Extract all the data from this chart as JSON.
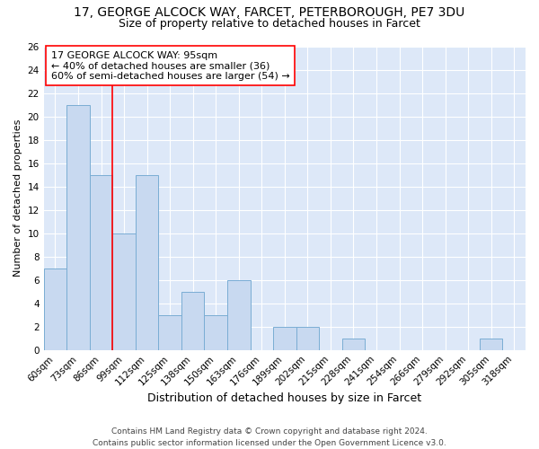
{
  "title1": "17, GEORGE ALCOCK WAY, FARCET, PETERBOROUGH, PE7 3DU",
  "title2": "Size of property relative to detached houses in Farcet",
  "xlabel": "Distribution of detached houses by size in Farcet",
  "ylabel": "Number of detached properties",
  "categories": [
    "60sqm",
    "73sqm",
    "86sqm",
    "99sqm",
    "112sqm",
    "125sqm",
    "138sqm",
    "150sqm",
    "163sqm",
    "176sqm",
    "189sqm",
    "202sqm",
    "215sqm",
    "228sqm",
    "241sqm",
    "254sqm",
    "266sqm",
    "279sqm",
    "292sqm",
    "305sqm",
    "318sqm"
  ],
  "values": [
    7,
    21,
    15,
    10,
    15,
    3,
    5,
    3,
    6,
    0,
    2,
    2,
    0,
    1,
    0,
    0,
    0,
    0,
    0,
    1,
    0
  ],
  "bar_color": "#c8d9f0",
  "bar_edge_color": "#7aadd4",
  "red_line_x": 3,
  "annotation_lines": [
    "17 GEORGE ALCOCK WAY: 95sqm",
    "← 40% of detached houses are smaller (36)",
    "60% of semi-detached houses are larger (54) →"
  ],
  "ylim": [
    0,
    26
  ],
  "yticks": [
    0,
    2,
    4,
    6,
    8,
    10,
    12,
    14,
    16,
    18,
    20,
    22,
    24,
    26
  ],
  "background_color": "#dde8f8",
  "grid_color": "#ffffff",
  "footer1": "Contains HM Land Registry data © Crown copyright and database right 2024.",
  "footer2": "Contains public sector information licensed under the Open Government Licence v3.0.",
  "title1_fontsize": 10,
  "title2_fontsize": 9,
  "xlabel_fontsize": 9,
  "ylabel_fontsize": 8,
  "tick_fontsize": 7.5,
  "annotation_fontsize": 8,
  "footer_fontsize": 6.5
}
